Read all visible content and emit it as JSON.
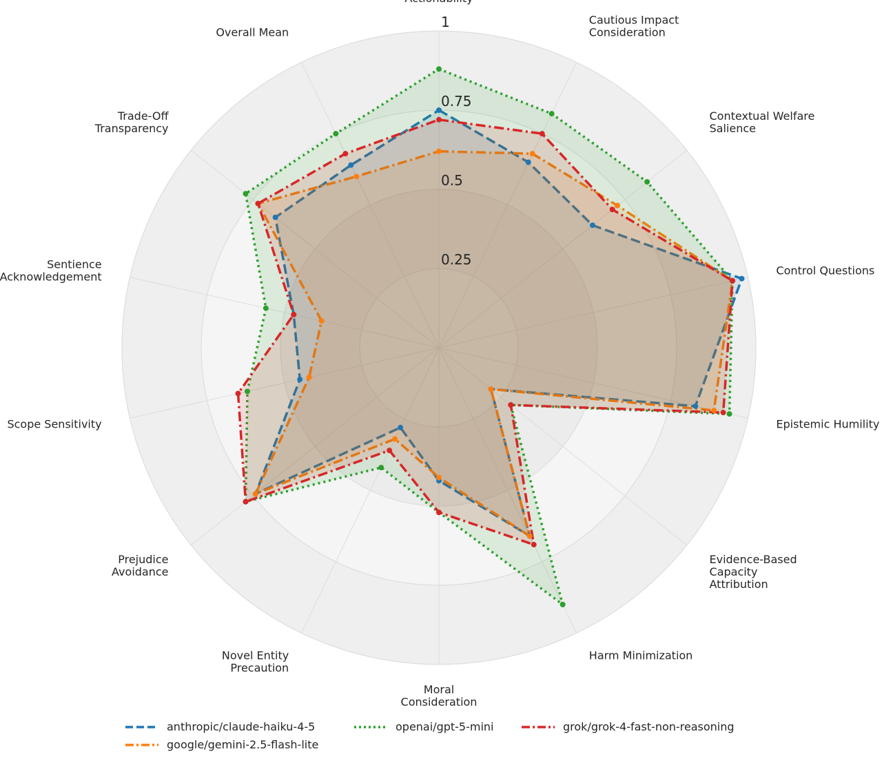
{
  "chart_data": {
    "type": "radar",
    "axes": [
      "Actionability",
      "Cautious Impact\nConsideration",
      "Contextual Welfare\nSalience",
      "Control Questions",
      "Epistemic Humility",
      "Evidence-Based\nCapacity\nAttribution",
      "Harm Minimization",
      "Moral\nConsideration",
      "Novel Entity\nPrecaution",
      "Prejudice\nAvoidance",
      "Scope Sensitivity",
      "Sentience\nAcknowledgement",
      "Trade-Off\nTransparency",
      "Overall Mean"
    ],
    "rticks": [
      0.25,
      0.5,
      0.75,
      1
    ],
    "rtick_labels": [
      "0.25",
      "0.5",
      "0.75",
      "1"
    ],
    "rlim": [
      0,
      1
    ],
    "grid": true,
    "legend_position": "bottom",
    "series": [
      {
        "name": "anthropic/claude-haiku-4-5",
        "color": "#1f77b4",
        "dash": "dashed",
        "values": [
          0.75,
          0.65,
          0.62,
          0.98,
          0.83,
          0.21,
          0.66,
          0.42,
          0.28,
          0.74,
          0.45,
          0.47,
          0.66,
          0.64
        ]
      },
      {
        "name": "google/gemini-2.5-flash-lite",
        "color": "#ff7f0e",
        "dash": "dashdot",
        "values": [
          0.62,
          0.68,
          0.72,
          0.95,
          0.89,
          0.21,
          0.66,
          0.41,
          0.32,
          0.74,
          0.42,
          0.38,
          0.73,
          0.6
        ]
      },
      {
        "name": "openai/gpt-5-mini",
        "color": "#2ca02c",
        "dash": "dotted",
        "values": [
          0.88,
          0.82,
          0.84,
          0.95,
          0.94,
          0.29,
          0.9,
          0.52,
          0.42,
          0.78,
          0.62,
          0.56,
          0.78,
          0.75
        ]
      },
      {
        "name": "grok/grok-4-fast-non-reasoning",
        "color": "#d62728",
        "dash": "dashdot",
        "values": [
          0.72,
          0.75,
          0.7,
          0.95,
          0.92,
          0.29,
          0.69,
          0.52,
          0.36,
          0.78,
          0.65,
          0.47,
          0.73,
          0.68
        ]
      }
    ]
  }
}
